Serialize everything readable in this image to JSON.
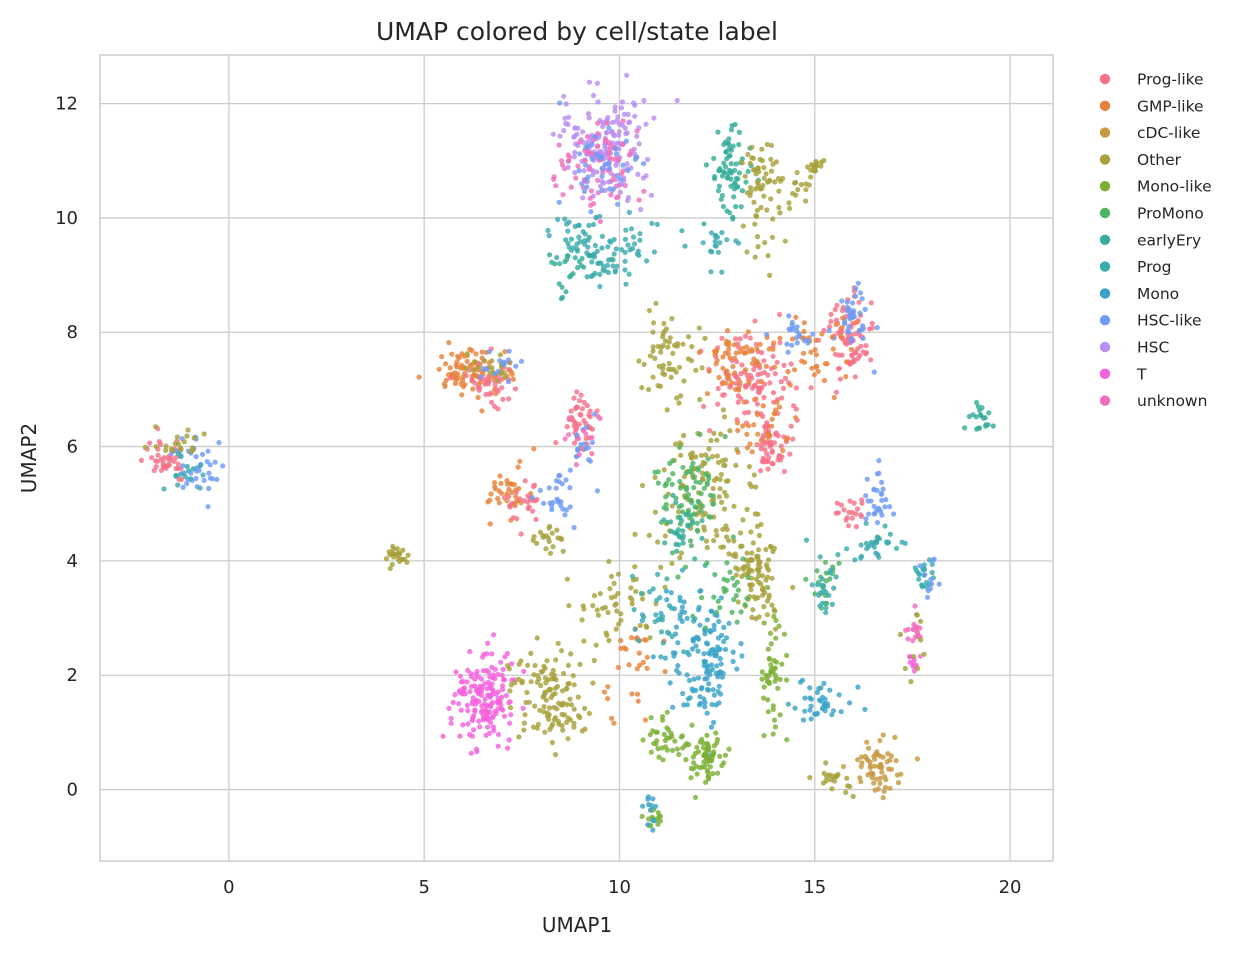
{
  "chart_data": {
    "type": "scatter",
    "title": "UMAP colored by cell/state label",
    "xlabel": "UMAP1",
    "ylabel": "UMAP2",
    "xlim": [
      -3.3,
      21.1
    ],
    "ylim": [
      -1.25,
      12.85
    ],
    "xticks": [
      0,
      5,
      10,
      15,
      20
    ],
    "yticks": [
      0,
      2,
      4,
      6,
      8,
      10,
      12
    ],
    "grid": true,
    "legend_position": "outside-right",
    "series": [
      {
        "name": "Prog-like",
        "color": "#f77189"
      },
      {
        "name": "GMP-like",
        "color": "#e8823a"
      },
      {
        "name": "cDC-like",
        "color": "#c69a41"
      },
      {
        "name": "Other",
        "color": "#a6a13a"
      },
      {
        "name": "Mono-like",
        "color": "#7cb033"
      },
      {
        "name": "ProMono",
        "color": "#4eb363"
      },
      {
        "name": "earlyEry",
        "color": "#36ad98"
      },
      {
        "name": "Prog",
        "color": "#3aabae"
      },
      {
        "name": "Mono",
        "color": "#3ba3c8"
      },
      {
        "name": "HSC-like",
        "color": "#6e9bf4"
      },
      {
        "name": "HSC",
        "color": "#b88ef2"
      },
      {
        "name": "T",
        "color": "#f561dd"
      },
      {
        "name": "unknown",
        "color": "#f06fbc"
      }
    ],
    "clusters": [
      {
        "series": "Prog-like",
        "x": -1.6,
        "y": 5.8,
        "sx": 0.4,
        "sy": 0.25,
        "n": 40
      },
      {
        "series": "HSC-like",
        "x": -0.8,
        "y": 5.6,
        "sx": 0.4,
        "sy": 0.35,
        "n": 40
      },
      {
        "series": "Other",
        "x": -1.1,
        "y": 6.0,
        "sx": 0.4,
        "sy": 0.2,
        "n": 20
      },
      {
        "series": "Prog",
        "x": -1.2,
        "y": 5.5,
        "sx": 0.4,
        "sy": 0.2,
        "n": 15
      },
      {
        "series": "Other",
        "x": 4.3,
        "y": 4.1,
        "sx": 0.25,
        "sy": 0.12,
        "n": 25
      },
      {
        "series": "GMP-like",
        "x": 6.2,
        "y": 7.3,
        "sx": 0.6,
        "sy": 0.25,
        "n": 90
      },
      {
        "series": "Prog-like",
        "x": 6.8,
        "y": 7.1,
        "sx": 0.6,
        "sy": 0.3,
        "n": 40
      },
      {
        "series": "Other",
        "x": 6.8,
        "y": 7.4,
        "sx": 0.5,
        "sy": 0.2,
        "n": 20
      },
      {
        "series": "HSC-like",
        "x": 7.2,
        "y": 7.4,
        "sx": 0.4,
        "sy": 0.2,
        "n": 15
      },
      {
        "series": "GMP-like",
        "x": 7.1,
        "y": 5.2,
        "sx": 0.4,
        "sy": 0.3,
        "n": 35
      },
      {
        "series": "Prog-like",
        "x": 7.6,
        "y": 5.0,
        "sx": 0.4,
        "sy": 0.3,
        "n": 25
      },
      {
        "series": "HSC-like",
        "x": 8.4,
        "y": 5.1,
        "sx": 0.3,
        "sy": 0.3,
        "n": 25
      },
      {
        "series": "Other",
        "x": 8.3,
        "y": 4.4,
        "sx": 0.4,
        "sy": 0.2,
        "n": 20
      },
      {
        "series": "Prog-like",
        "x": 9.0,
        "y": 6.4,
        "sx": 0.25,
        "sy": 0.35,
        "n": 45
      },
      {
        "series": "HSC-like",
        "x": 9.1,
        "y": 6.0,
        "sx": 0.3,
        "sy": 0.4,
        "n": 20
      },
      {
        "series": "unknown",
        "x": 9.0,
        "y": 6.2,
        "sx": 0.3,
        "sy": 0.3,
        "n": 10
      },
      {
        "series": "HSC",
        "x": 9.6,
        "y": 11.2,
        "sx": 0.8,
        "sy": 0.6,
        "n": 170
      },
      {
        "series": "unknown",
        "x": 9.3,
        "y": 10.9,
        "sx": 0.8,
        "sy": 0.55,
        "n": 70
      },
      {
        "series": "HSC-like",
        "x": 9.5,
        "y": 11.0,
        "sx": 0.7,
        "sy": 0.5,
        "n": 40
      },
      {
        "series": "Prog",
        "x": 9.6,
        "y": 9.5,
        "sx": 0.9,
        "sy": 0.45,
        "n": 90
      },
      {
        "series": "earlyEry",
        "x": 8.8,
        "y": 9.2,
        "sx": 0.5,
        "sy": 0.3,
        "n": 30
      },
      {
        "series": "earlyEry",
        "x": 12.9,
        "y": 10.8,
        "sx": 0.3,
        "sy": 0.5,
        "n": 70
      },
      {
        "series": "Other",
        "x": 13.6,
        "y": 10.4,
        "sx": 0.4,
        "sy": 0.6,
        "n": 60
      },
      {
        "series": "Other",
        "x": 14.4,
        "y": 10.6,
        "sx": 0.5,
        "sy": 0.2,
        "n": 20
      },
      {
        "series": "Other",
        "x": 15.0,
        "y": 10.9,
        "sx": 0.15,
        "sy": 0.1,
        "n": 15
      },
      {
        "series": "Prog",
        "x": 12.5,
        "y": 9.6,
        "sx": 0.4,
        "sy": 0.3,
        "n": 20
      },
      {
        "series": "Prog-like",
        "x": 13.4,
        "y": 7.2,
        "sx": 0.7,
        "sy": 0.55,
        "n": 110
      },
      {
        "series": "GMP-like",
        "x": 13.1,
        "y": 7.5,
        "sx": 0.6,
        "sy": 0.4,
        "n": 60
      },
      {
        "series": "Prog-like",
        "x": 13.9,
        "y": 6.0,
        "sx": 0.4,
        "sy": 0.35,
        "n": 50
      },
      {
        "series": "GMP-like",
        "x": 13.7,
        "y": 6.3,
        "sx": 0.4,
        "sy": 0.3,
        "n": 30
      },
      {
        "series": "Prog-like",
        "x": 15.9,
        "y": 8.0,
        "sx": 0.35,
        "sy": 0.5,
        "n": 80
      },
      {
        "series": "HSC-like",
        "x": 16.0,
        "y": 8.2,
        "sx": 0.3,
        "sy": 0.4,
        "n": 40
      },
      {
        "series": "GMP-like",
        "x": 15.0,
        "y": 7.6,
        "sx": 0.6,
        "sy": 0.4,
        "n": 40
      },
      {
        "series": "HSC-like",
        "x": 14.5,
        "y": 8.0,
        "sx": 0.5,
        "sy": 0.3,
        "n": 20
      },
      {
        "series": "Other",
        "x": 11.3,
        "y": 7.6,
        "sx": 0.5,
        "sy": 0.6,
        "n": 60
      },
      {
        "series": "Other",
        "x": 12.2,
        "y": 5.2,
        "sx": 0.9,
        "sy": 0.8,
        "n": 120
      },
      {
        "series": "ProMono",
        "x": 11.8,
        "y": 5.2,
        "sx": 0.5,
        "sy": 0.7,
        "n": 80
      },
      {
        "series": "earlyEry",
        "x": 11.6,
        "y": 4.5,
        "sx": 0.4,
        "sy": 0.4,
        "n": 30
      },
      {
        "series": "Other",
        "x": 13.4,
        "y": 4.0,
        "sx": 0.4,
        "sy": 0.4,
        "n": 50
      },
      {
        "series": "Prog-like",
        "x": 16.0,
        "y": 4.9,
        "sx": 0.3,
        "sy": 0.2,
        "n": 20
      },
      {
        "series": "HSC-like",
        "x": 16.6,
        "y": 5.1,
        "sx": 0.3,
        "sy": 0.3,
        "n": 30
      },
      {
        "series": "Prog",
        "x": 16.5,
        "y": 4.3,
        "sx": 0.5,
        "sy": 0.25,
        "n": 30
      },
      {
        "series": "Prog",
        "x": 17.8,
        "y": 3.8,
        "sx": 0.2,
        "sy": 0.2,
        "n": 20
      },
      {
        "series": "HSC-like",
        "x": 17.9,
        "y": 3.6,
        "sx": 0.15,
        "sy": 0.3,
        "n": 10
      },
      {
        "series": "unknown",
        "x": 17.6,
        "y": 2.8,
        "sx": 0.2,
        "sy": 0.3,
        "n": 20
      },
      {
        "series": "T",
        "x": 17.5,
        "y": 2.2,
        "sx": 0.08,
        "sy": 0.1,
        "n": 8
      },
      {
        "series": "Other",
        "x": 17.6,
        "y": 2.5,
        "sx": 0.25,
        "sy": 0.4,
        "n": 10
      },
      {
        "series": "ProMono",
        "x": 15.2,
        "y": 3.6,
        "sx": 0.25,
        "sy": 0.25,
        "n": 20
      },
      {
        "series": "Prog",
        "x": 15.3,
        "y": 3.5,
        "sx": 0.35,
        "sy": 0.5,
        "n": 20
      },
      {
        "series": "Mono",
        "x": 15.2,
        "y": 1.5,
        "sx": 0.5,
        "sy": 0.3,
        "n": 40
      },
      {
        "series": "earlyEry",
        "x": 19.3,
        "y": 6.5,
        "sx": 0.25,
        "sy": 0.15,
        "n": 20
      },
      {
        "series": "T",
        "x": 6.6,
        "y": 1.6,
        "sx": 0.5,
        "sy": 0.55,
        "n": 170
      },
      {
        "series": "Other",
        "x": 8.1,
        "y": 1.7,
        "sx": 0.6,
        "sy": 0.5,
        "n": 90
      },
      {
        "series": "Other",
        "x": 8.6,
        "y": 1.2,
        "sx": 0.4,
        "sy": 0.3,
        "n": 30
      },
      {
        "series": "Other",
        "x": 10.0,
        "y": 3.3,
        "sx": 0.7,
        "sy": 0.5,
        "n": 50
      },
      {
        "series": "GMP-like",
        "x": 10.4,
        "y": 2.3,
        "sx": 0.5,
        "sy": 0.6,
        "n": 30
      },
      {
        "series": "Mono",
        "x": 12.3,
        "y": 2.2,
        "sx": 0.4,
        "sy": 0.7,
        "n": 110
      },
      {
        "series": "Mono",
        "x": 11.6,
        "y": 2.8,
        "sx": 0.4,
        "sy": 0.6,
        "n": 40
      },
      {
        "series": "Mono-like",
        "x": 12.3,
        "y": 0.5,
        "sx": 0.35,
        "sy": 0.3,
        "n": 60
      },
      {
        "series": "Mono-like",
        "x": 11.3,
        "y": 0.9,
        "sx": 0.4,
        "sy": 0.3,
        "n": 40
      },
      {
        "series": "Mono-like",
        "x": 13.9,
        "y": 2.0,
        "sx": 0.2,
        "sy": 0.7,
        "n": 50
      },
      {
        "series": "Mono-like",
        "x": 10.9,
        "y": -0.5,
        "sx": 0.18,
        "sy": 0.1,
        "n": 15
      },
      {
        "series": "Mono",
        "x": 10.8,
        "y": -0.3,
        "sx": 0.15,
        "sy": 0.2,
        "n": 12
      },
      {
        "series": "Other",
        "x": 13.6,
        "y": 3.5,
        "sx": 0.3,
        "sy": 0.5,
        "n": 40
      },
      {
        "series": "cDC-like",
        "x": 16.6,
        "y": 0.4,
        "sx": 0.45,
        "sy": 0.3,
        "n": 60
      },
      {
        "series": "Other",
        "x": 15.6,
        "y": 0.2,
        "sx": 0.4,
        "sy": 0.15,
        "n": 20
      },
      {
        "series": "ProMono",
        "x": 12.8,
        "y": 3.5,
        "sx": 0.5,
        "sy": 0.5,
        "n": 30
      },
      {
        "series": "Prog",
        "x": 11.0,
        "y": 3.0,
        "sx": 0.6,
        "sy": 0.6,
        "n": 25
      }
    ]
  }
}
